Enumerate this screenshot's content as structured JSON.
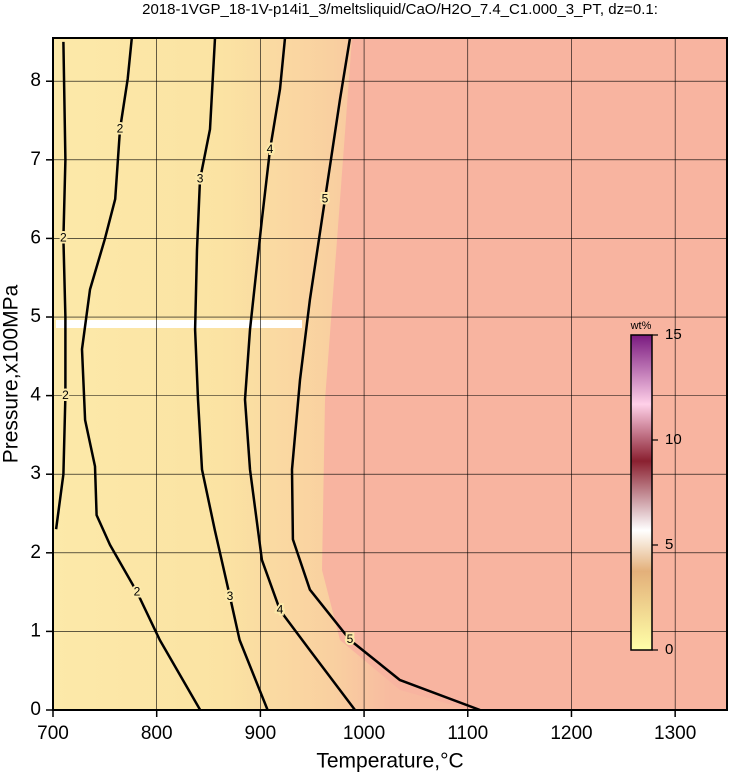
{
  "chart_data": {
    "type": "contour",
    "title": "2018-1VGP_18-1V-p14i1_3/meltsliquid/CaO/H2O_7.4_C1.000_3_PT, dz=0.1:",
    "x_label": "Temperature,°C",
    "y_label": "Pressure,x100MPa",
    "xlim": [
      700,
      1350
    ],
    "ylim": [
      0,
      8.55
    ],
    "xticks": [
      700,
      800,
      900,
      1000,
      1100,
      1200,
      1300
    ],
    "yticks": [
      0,
      1,
      2,
      3,
      4,
      5,
      6,
      7,
      8
    ],
    "grid": true,
    "contours": [
      {
        "level": 2,
        "x": [
          703,
          710,
          712,
          712,
          710,
          712,
          710
        ],
        "y": [
          2.3,
          3,
          4,
          5,
          6,
          7,
          8.5
        ]
      },
      {
        "level": 2,
        "x": [
          842,
          803,
          781,
          755,
          742,
          740.5,
          731,
          728,
          735.7,
          750,
          760,
          764.6,
          772,
          776
        ],
        "y": [
          0,
          0.89,
          1.5,
          2.1,
          2.48,
          3.1,
          3.69,
          4.59,
          5.35,
          5.99,
          6.5,
          7.39,
          8.03,
          8.55
        ]
      },
      {
        "level": 3,
        "x": [
          907,
          880,
          870.7,
          856,
          843.7,
          839.8,
          837,
          838.9,
          841.8,
          851.4,
          856.2
        ],
        "y": [
          0,
          0.89,
          1.44,
          2.29,
          3.06,
          3.95,
          4.84,
          5.86,
          6.75,
          7.39,
          8.55
        ]
      },
      {
        "level": 4,
        "x": [
          991.2,
          947.8,
          918.9,
          901.5,
          890,
          885.2,
          890,
          901.5,
          909.3,
          918.9,
          923.7
        ],
        "y": [
          0,
          0.76,
          1.27,
          1.91,
          3.06,
          3.95,
          4.84,
          6.24,
          7.13,
          7.9,
          8.55
        ]
      },
      {
        "level": 5,
        "x": [
          1111.8,
          1034.6,
          986.4,
          947.8,
          931.4,
          930.5,
          938.2,
          947.8,
          962.3,
          976.8,
          986.4
        ],
        "y": [
          0,
          0.38,
          0.89,
          1.53,
          2.17,
          3.06,
          4.2,
          5.22,
          6.5,
          7.77,
          8.55
        ]
      }
    ],
    "colorbar": {
      "label": "wt%",
      "lim": [
        0,
        15
      ],
      "ticks": [
        0,
        5,
        10,
        15
      ]
    }
  }
}
